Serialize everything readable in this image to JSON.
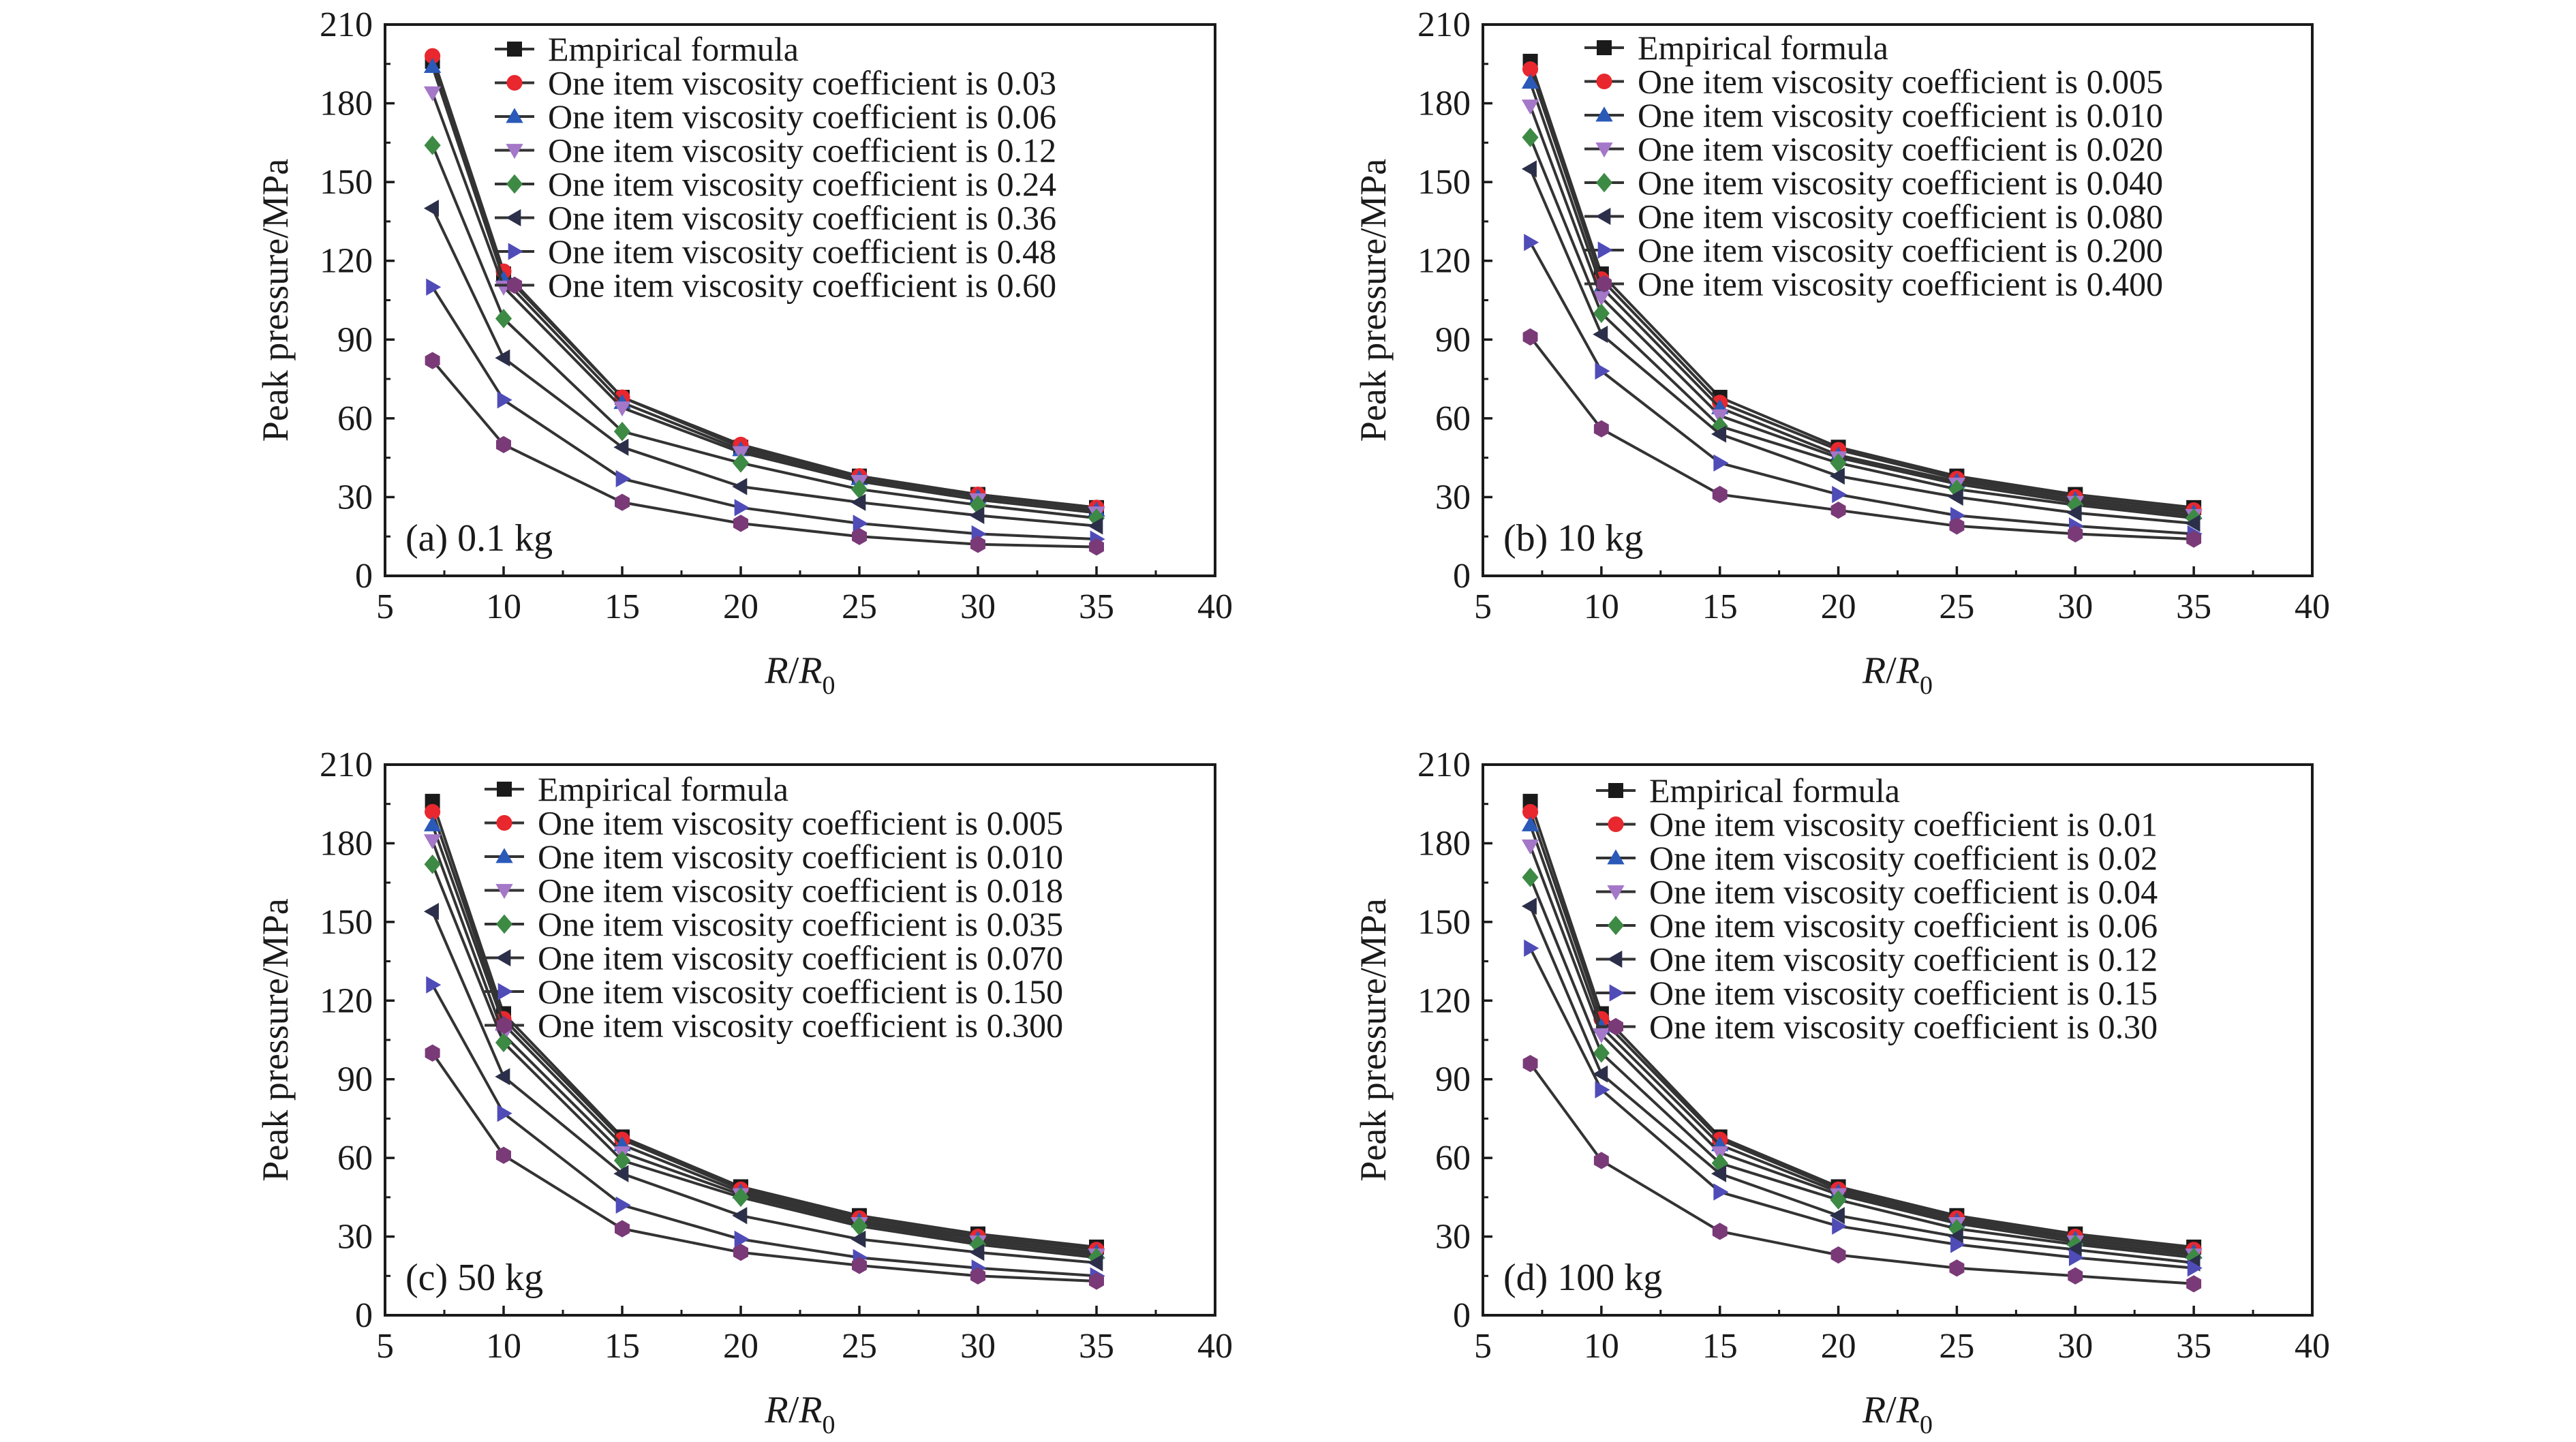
{
  "chart_data": [
    {
      "type": "line",
      "annotation": "(a) 0.1 kg",
      "xlabel_main": "R/R",
      "xlabel_sub": "0",
      "ylabel": "Peak pressure/MPa",
      "xlim": [
        5,
        40
      ],
      "ylim": [
        0,
        210
      ],
      "xticks": [
        5,
        10,
        15,
        20,
        25,
        30,
        35,
        40
      ],
      "yticks": [
        0,
        30,
        60,
        90,
        120,
        150,
        180,
        210
      ],
      "x": [
        7,
        10,
        15,
        20,
        25,
        30,
        35
      ],
      "legend_position": "top-right",
      "series": [
        {
          "name": "Empirical formula",
          "values": [
            196,
            115,
            68,
            49,
            38,
            31,
            26
          ]
        },
        {
          "name": "One item viscosity coefficient is 0.03",
          "values": [
            198,
            116,
            68,
            50,
            38,
            31,
            26
          ]
        },
        {
          "name": "One item viscosity coefficient is 0.06",
          "values": [
            194,
            113,
            66,
            48,
            37,
            30,
            25
          ]
        },
        {
          "name": "One item viscosity coefficient is 0.12",
          "values": [
            184,
            110,
            64,
            47,
            36,
            29,
            24
          ]
        },
        {
          "name": "One item viscosity coefficient is 0.24",
          "values": [
            164,
            98,
            55,
            43,
            33,
            27,
            22
          ]
        },
        {
          "name": "One item viscosity coefficient is 0.36",
          "values": [
            140,
            83,
            49,
            34,
            28,
            23,
            19
          ]
        },
        {
          "name": "One item viscosity coefficient is 0.48",
          "values": [
            110,
            67,
            37,
            26,
            20,
            16,
            14
          ]
        },
        {
          "name": "One item viscosity coefficient is 0.60",
          "values": [
            82,
            50,
            28,
            20,
            15,
            12,
            11
          ]
        }
      ]
    },
    {
      "type": "line",
      "annotation": "(b) 10 kg",
      "xlabel_main": "R/R",
      "xlabel_sub": "0",
      "ylabel": "Peak pressure/MPa",
      "xlim": [
        5,
        40
      ],
      "ylim": [
        0,
        210
      ],
      "xticks": [
        5,
        10,
        15,
        20,
        25,
        30,
        35,
        40
      ],
      "yticks": [
        0,
        30,
        60,
        90,
        120,
        150,
        180,
        210
      ],
      "x": [
        7,
        10,
        15,
        20,
        25,
        30,
        35
      ],
      "legend_position": "top-right",
      "series": [
        {
          "name": "Empirical formula",
          "values": [
            196,
            115,
            68,
            49,
            38,
            31,
            26
          ]
        },
        {
          "name": "One item viscosity coefficient is 0.005",
          "values": [
            193,
            113,
            66,
            48,
            37,
            30,
            25
          ]
        },
        {
          "name": "One item viscosity coefficient is 0.010",
          "values": [
            188,
            110,
            64,
            46,
            36,
            29,
            24
          ]
        },
        {
          "name": "One item viscosity coefficient is 0.020",
          "values": [
            179,
            106,
            61,
            45,
            35,
            28,
            23
          ]
        },
        {
          "name": "One item viscosity coefficient is 0.040",
          "values": [
            167,
            100,
            57,
            43,
            33,
            27,
            22
          ]
        },
        {
          "name": "One item viscosity coefficient is 0.080",
          "values": [
            155,
            92,
            54,
            38,
            30,
            24,
            20
          ]
        },
        {
          "name": "One item viscosity coefficient is 0.200",
          "values": [
            127,
            78,
            43,
            31,
            23,
            19,
            16
          ]
        },
        {
          "name": "One item viscosity coefficient is 0.400",
          "values": [
            91,
            56,
            31,
            25,
            19,
            16,
            14
          ]
        }
      ]
    },
    {
      "type": "line",
      "annotation": "(c) 50 kg",
      "xlabel_main": "R/R",
      "xlabel_sub": "0",
      "ylabel": "Peak pressure/MPa",
      "xlim": [
        5,
        40
      ],
      "ylim": [
        0,
        210
      ],
      "xticks": [
        5,
        10,
        15,
        20,
        25,
        30,
        35,
        40
      ],
      "yticks": [
        0,
        30,
        60,
        90,
        120,
        150,
        180,
        210
      ],
      "x": [
        7,
        10,
        15,
        20,
        25,
        30,
        35
      ],
      "legend_position": "top-right",
      "series": [
        {
          "name": "Empirical formula",
          "values": [
            196,
            115,
            68,
            49,
            38,
            31,
            26
          ]
        },
        {
          "name": "One item viscosity coefficient is 0.005",
          "values": [
            192,
            113,
            67,
            48,
            37,
            30,
            25
          ]
        },
        {
          "name": "One item viscosity coefficient is 0.010",
          "values": [
            187,
            111,
            65,
            47,
            36,
            29,
            24
          ]
        },
        {
          "name": "One item viscosity coefficient is 0.018",
          "values": [
            181,
            107,
            62,
            46,
            35,
            28,
            23
          ]
        },
        {
          "name": "One item viscosity coefficient is 0.035",
          "values": [
            172,
            104,
            59,
            45,
            34,
            27,
            22
          ]
        },
        {
          "name": "One item viscosity coefficient is 0.070",
          "values": [
            154,
            91,
            54,
            38,
            29,
            24,
            20
          ]
        },
        {
          "name": "One item viscosity coefficient is 0.150",
          "values": [
            126,
            77,
            42,
            29,
            22,
            18,
            15
          ]
        },
        {
          "name": "One item viscosity coefficient is 0.300",
          "values": [
            100,
            61,
            33,
            24,
            19,
            15,
            13
          ]
        }
      ]
    },
    {
      "type": "line",
      "annotation": "(d) 100 kg",
      "xlabel_main": "R/R",
      "xlabel_sub": "0",
      "ylabel": "Peak pressure/MPa",
      "xlim": [
        5,
        40
      ],
      "ylim": [
        0,
        210
      ],
      "xticks": [
        5,
        10,
        15,
        20,
        25,
        30,
        35,
        40
      ],
      "yticks": [
        0,
        30,
        60,
        90,
        120,
        150,
        180,
        210
      ],
      "x": [
        7,
        10,
        15,
        20,
        25,
        30,
        35
      ],
      "legend_position": "top-right",
      "series": [
        {
          "name": "Empirical formula",
          "values": [
            196,
            115,
            68,
            49,
            38,
            31,
            26
          ]
        },
        {
          "name": "One item viscosity coefficient is 0.01",
          "values": [
            192,
            113,
            67,
            48,
            37,
            30,
            25
          ]
        },
        {
          "name": "One item viscosity coefficient is 0.02",
          "values": [
            187,
            110,
            65,
            47,
            36,
            29,
            24
          ]
        },
        {
          "name": "One item viscosity coefficient is 0.04",
          "values": [
            179,
            107,
            62,
            46,
            35,
            28,
            23
          ]
        },
        {
          "name": "One item viscosity coefficient is 0.06",
          "values": [
            167,
            100,
            58,
            44,
            33,
            27,
            22
          ]
        },
        {
          "name": "One item viscosity coefficient is 0.12",
          "values": [
            156,
            92,
            54,
            38,
            30,
            25,
            20
          ]
        },
        {
          "name": "One item viscosity coefficient is 0.15",
          "values": [
            140,
            86,
            47,
            34,
            27,
            22,
            18
          ]
        },
        {
          "name": "One item viscosity coefficient is 0.30",
          "values": [
            96,
            59,
            32,
            23,
            18,
            15,
            12
          ]
        }
      ]
    }
  ],
  "series_styles": [
    {
      "color": "#1a1a1a",
      "marker": "square"
    },
    {
      "color": "#e8272e",
      "marker": "circle"
    },
    {
      "color": "#2a59b8",
      "marker": "triangle-up"
    },
    {
      "color": "#a477c8",
      "marker": "triangle-down"
    },
    {
      "color": "#3d8a45",
      "marker": "diamond"
    },
    {
      "color": "#2c2f4a",
      "marker": "triangle-left"
    },
    {
      "color": "#4f4cb8",
      "marker": "triangle-right"
    },
    {
      "color": "#7a3a78",
      "marker": "hexagon"
    }
  ],
  "line_color": "#333333"
}
